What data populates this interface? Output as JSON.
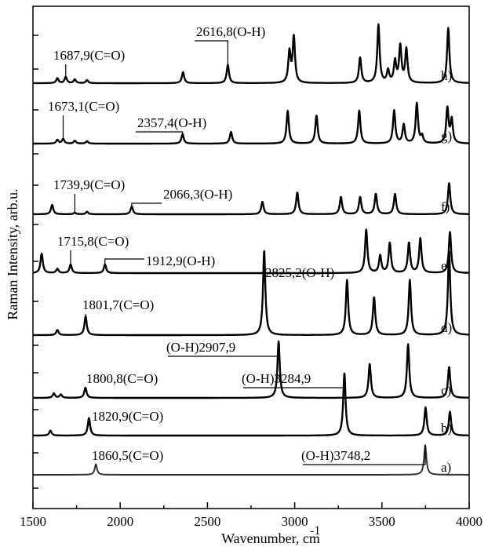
{
  "chart_data": {
    "type": "line",
    "xlabel": "Wavenumber, cm",
    "xlabel_superscript": "-1",
    "ylabel": "Raman Intensity, arb.u.",
    "xlim": [
      1500,
      4000
    ],
    "x_ticks": [
      1500,
      2000,
      2500,
      3000,
      3500,
      4000
    ],
    "grid": false,
    "series": [
      {
        "name": "a)",
        "peaks": [
          [
            1860.5,
            0.32
          ],
          [
            3748.2,
            0.9
          ]
        ],
        "annotations": [
          {
            "text": "1860,5(C=O)",
            "x": 1860.5
          },
          {
            "text": "(O-H)3748,2",
            "x": 3748.2
          }
        ]
      },
      {
        "name": "b)",
        "peaks": [
          [
            1600,
            0.08
          ],
          [
            1820.9,
            0.28
          ],
          [
            3284.9,
            1.0
          ],
          [
            3750,
            0.45
          ],
          [
            3890,
            0.38
          ]
        ],
        "annotations": [
          {
            "text": "1820,9(C=O)",
            "x": 1820.9
          },
          {
            "text": "(O-H)3284,9",
            "x": 3284.9
          }
        ]
      },
      {
        "name": "c)",
        "peaks": [
          [
            1620,
            0.08
          ],
          [
            1660,
            0.06
          ],
          [
            1800.8,
            0.18
          ],
          [
            2907.9,
            1.0
          ],
          [
            3430,
            0.6
          ],
          [
            3650,
            0.95
          ],
          [
            3885,
            0.55
          ]
        ],
        "annotations": [
          {
            "text": "1800,8(C=O)",
            "x": 1800.8
          },
          {
            "text": "(O-H)2907,9",
            "x": 2907.9
          }
        ]
      },
      {
        "name": "d)",
        "peaks": [
          [
            1640,
            0.06
          ],
          [
            1801.7,
            0.22
          ],
          [
            2825.2,
            1.0
          ],
          [
            3300,
            0.65
          ],
          [
            3455,
            0.45
          ],
          [
            3660,
            0.65
          ],
          [
            3885,
            1.0
          ]
        ],
        "annotations": [
          {
            "text": "1801,7(C=O)",
            "x": 1801.7
          },
          {
            "text": "2825,2(O-H)",
            "x": 2825.2
          }
        ]
      },
      {
        "name": "e)",
        "peaks": [
          [
            1550,
            0.45
          ],
          [
            1640,
            0.1
          ],
          [
            1715.8,
            0.2
          ],
          [
            1912.9,
            0.2
          ],
          [
            3410,
            1.0
          ],
          [
            3490,
            0.4
          ],
          [
            3545,
            0.7
          ],
          [
            3655,
            0.7
          ],
          [
            3720,
            0.8
          ],
          [
            3890,
            0.95
          ]
        ],
        "annotations": [
          {
            "text": "1715,8(C=O)",
            "x": 1715.8
          },
          {
            "text": "1912,9(O-H)",
            "x": 1912.9
          }
        ]
      },
      {
        "name": "f)",
        "peaks": [
          [
            1610,
            0.3
          ],
          [
            1739.9,
            0.05
          ],
          [
            1810,
            0.08
          ],
          [
            2066.3,
            0.25
          ],
          [
            2815,
            0.4
          ],
          [
            3015,
            0.7
          ],
          [
            3265,
            0.55
          ],
          [
            3375,
            0.55
          ],
          [
            3465,
            0.65
          ],
          [
            3575,
            0.65
          ],
          [
            3885,
            1.0
          ]
        ],
        "annotations": [
          {
            "text": "1739,9(C=O)",
            "x": 1739.9
          },
          {
            "text": "2066,3(O-H)",
            "x": 2066.3
          }
        ]
      },
      {
        "name": "g)",
        "peaks": [
          [
            1640,
            0.08
          ],
          [
            1673.1,
            0.1
          ],
          [
            1740,
            0.06
          ],
          [
            1810,
            0.05
          ],
          [
            2357.4,
            0.2
          ],
          [
            2635,
            0.25
          ],
          [
            2960,
            0.7
          ],
          [
            3125,
            0.6
          ],
          [
            3370,
            0.7
          ],
          [
            3570,
            0.7
          ],
          [
            3625,
            0.4
          ],
          [
            3700,
            0.85
          ],
          [
            3730,
            0.15
          ],
          [
            3875,
            0.75
          ],
          [
            3900,
            0.5
          ]
        ],
        "annotations": [
          {
            "text": "1673,1(C=O)",
            "x": 1673.1
          },
          {
            "text": "2357,4(O-H)",
            "x": 2357.4
          }
        ]
      },
      {
        "name": "h)",
        "peaks": [
          [
            1640,
            0.08
          ],
          [
            1687.9,
            0.1
          ],
          [
            1740,
            0.06
          ],
          [
            1810,
            0.05
          ],
          [
            2360,
            0.18
          ],
          [
            2616.8,
            0.3
          ],
          [
            2970,
            0.5
          ],
          [
            2995,
            0.75
          ],
          [
            3375,
            0.42
          ],
          [
            3480,
            0.95
          ],
          [
            3535,
            0.2
          ],
          [
            3575,
            0.35
          ],
          [
            3605,
            0.6
          ],
          [
            3640,
            0.55
          ],
          [
            3880,
            0.9
          ]
        ],
        "annotations": [
          {
            "text": "1687,9(C=O)",
            "x": 1687.9
          },
          {
            "text": "2616,8(O-H)",
            "x": 2616.8
          }
        ]
      }
    ]
  }
}
